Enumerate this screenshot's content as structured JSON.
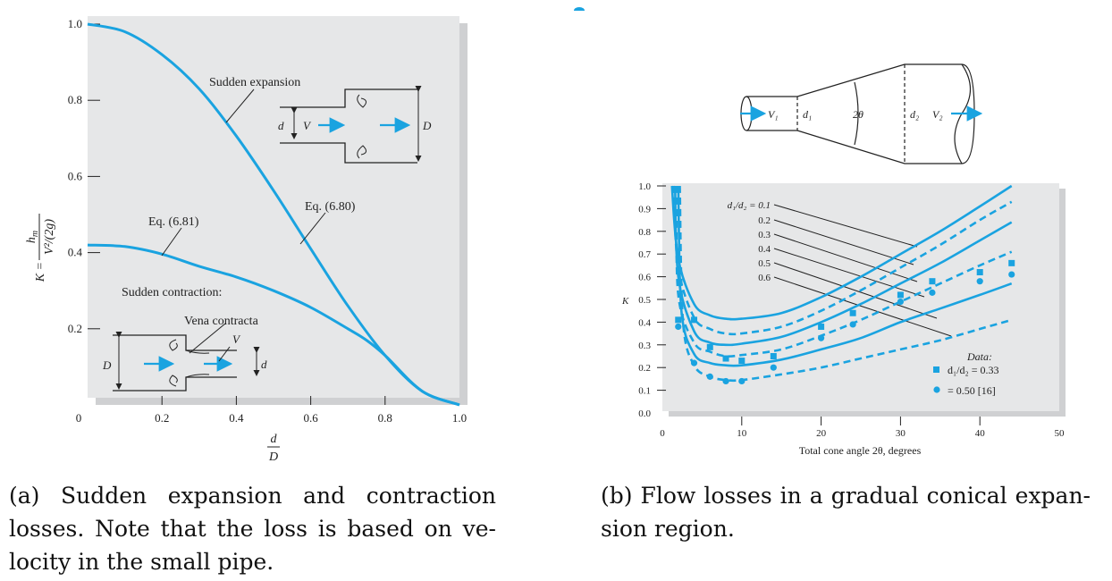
{
  "colors": {
    "curve": "#1aa3e0",
    "panel": "#e6e7e8",
    "shadow": "#cfd0d2",
    "ink": "#222222"
  },
  "chart_data": [
    {
      "type": "line",
      "panel": "(a)",
      "xlabel_num": "d",
      "xlabel_den": "D",
      "ylabel": {
        "lhs": "K =",
        "num": "h",
        "num_sub": "m",
        "den": "V²/(2g)"
      },
      "xlim": [
        0,
        1.0
      ],
      "ylim": [
        0,
        1.0
      ],
      "x_ticks": [
        "0",
        "0.2",
        "0.4",
        "0.6",
        "0.8",
        "1.0"
      ],
      "x_tick_values": [
        0,
        0.2,
        0.4,
        0.6,
        0.8,
        1.0
      ],
      "y_ticks": [
        "0.2",
        "0.4",
        "0.6",
        "0.8",
        "1.0"
      ],
      "y_tick_values": [
        0.2,
        0.4,
        0.6,
        0.8,
        1.0
      ],
      "series": [
        {
          "name": "Sudden expansion",
          "x": [
            0,
            0.1,
            0.2,
            0.3,
            0.4,
            0.5,
            0.6,
            0.7,
            0.8,
            0.9,
            1.0
          ],
          "y": [
            1.0,
            0.98,
            0.92,
            0.83,
            0.706,
            0.563,
            0.41,
            0.26,
            0.13,
            0.036,
            0.0
          ]
        },
        {
          "name": "Sudden contraction:",
          "x": [
            0,
            0.1,
            0.2,
            0.3,
            0.4,
            0.5,
            0.6,
            0.7,
            0.75,
            0.8,
            0.9,
            1.0
          ],
          "y": [
            0.42,
            0.416,
            0.396,
            0.364,
            0.336,
            0.3,
            0.256,
            0.2,
            0.17,
            0.13,
            0.036,
            0.0
          ]
        }
      ],
      "annotations": [
        "Sudden expansion",
        "Eq. (6.80)",
        "Eq. (6.81)",
        "Sudden contraction:",
        "Vena contracta"
      ],
      "inset_expansion": {
        "d": "d",
        "V": "V",
        "D": "D"
      },
      "inset_contraction": {
        "d": "d",
        "V": "V",
        "D": "D"
      }
    },
    {
      "type": "line",
      "panel": "(b)",
      "xlabel": "Total cone angle 2θ, degrees",
      "ylabel": "K",
      "xlim": [
        0,
        50
      ],
      "ylim": [
        0,
        1.0
      ],
      "x_ticks": [
        "0",
        "10",
        "20",
        "30",
        "40",
        "50"
      ],
      "x_tick_values": [
        0,
        10,
        20,
        30,
        40,
        50
      ],
      "y_ticks": [
        "0.0",
        "0.1",
        "0.2",
        "0.3",
        "0.4",
        "0.5",
        "0.6",
        "0.7",
        "0.8",
        "0.9",
        "1.0"
      ],
      "y_tick_values": [
        0,
        0.1,
        0.2,
        0.3,
        0.4,
        0.5,
        0.6,
        0.7,
        0.8,
        0.9,
        1.0
      ],
      "series": [
        {
          "name": "d₁/d₂ = 0.1",
          "style": "solid",
          "x": [
            1.2,
            2,
            4,
            6,
            8,
            10,
            15,
            20,
            25,
            30,
            35,
            40,
            44
          ],
          "y": [
            1.0,
            0.68,
            0.48,
            0.43,
            0.415,
            0.415,
            0.44,
            0.51,
            0.6,
            0.7,
            0.8,
            0.91,
            1.0
          ]
        },
        {
          "name": "0.2",
          "style": "dashed",
          "x": [
            1.4,
            2,
            4,
            6,
            8,
            10,
            15,
            20,
            25,
            30,
            35,
            40,
            44
          ],
          "y": [
            1.0,
            0.64,
            0.42,
            0.37,
            0.35,
            0.35,
            0.38,
            0.45,
            0.54,
            0.64,
            0.74,
            0.85,
            0.93
          ]
        },
        {
          "name": "0.3",
          "style": "solid",
          "x": [
            1.6,
            2,
            4,
            6,
            8,
            10,
            15,
            20,
            25,
            30,
            35,
            40,
            44
          ],
          "y": [
            1.0,
            0.6,
            0.36,
            0.31,
            0.3,
            0.305,
            0.335,
            0.4,
            0.48,
            0.57,
            0.66,
            0.76,
            0.84
          ]
        },
        {
          "name": "0.4",
          "style": "dashed",
          "x": [
            1.8,
            2,
            4,
            6,
            8,
            10,
            15,
            20,
            25,
            30,
            35,
            40,
            44
          ],
          "y": [
            1.0,
            0.52,
            0.31,
            0.27,
            0.25,
            0.255,
            0.28,
            0.34,
            0.41,
            0.49,
            0.57,
            0.65,
            0.71
          ]
        },
        {
          "name": "0.5",
          "style": "solid",
          "x": [
            2.0,
            2.4,
            4,
            6,
            8,
            10,
            15,
            20,
            25,
            30,
            35,
            40,
            44
          ],
          "y": [
            1.0,
            0.45,
            0.26,
            0.22,
            0.21,
            0.21,
            0.235,
            0.28,
            0.33,
            0.4,
            0.46,
            0.52,
            0.57
          ]
        },
        {
          "name": "0.6",
          "style": "dashed",
          "x": [
            2.2,
            2.6,
            4,
            6,
            8,
            10,
            15,
            20,
            25,
            30,
            35,
            40,
            44
          ],
          "y": [
            1.0,
            0.4,
            0.21,
            0.16,
            0.145,
            0.145,
            0.17,
            0.2,
            0.24,
            0.28,
            0.32,
            0.37,
            0.41
          ]
        }
      ],
      "data_points": [
        {
          "name": "d₁/d₂ = 0.33",
          "marker": "square",
          "x": [
            2,
            4,
            6,
            8,
            10,
            14,
            20,
            24,
            30,
            34,
            40,
            44
          ],
          "y": [
            0.41,
            0.41,
            0.29,
            0.24,
            0.23,
            0.25,
            0.38,
            0.44,
            0.52,
            0.58,
            0.62,
            0.66
          ]
        },
        {
          "name": "= 0.50 [16]",
          "marker": "circle",
          "x": [
            2,
            4,
            6,
            8,
            10,
            14,
            20,
            24,
            30,
            34,
            40,
            44
          ],
          "y": [
            0.38,
            0.22,
            0.16,
            0.14,
            0.14,
            0.2,
            0.33,
            0.39,
            0.49,
            0.53,
            0.58,
            0.61
          ]
        }
      ],
      "legend_title": "Data:",
      "legend_placement": "bottom-right",
      "series_labels": [
        "d₁/d₂ = 0.1",
        "0.2",
        "0.3",
        "0.4",
        "0.5",
        "0.6"
      ],
      "schematic": {
        "V1": "V₁",
        "d1": "d₁",
        "angle": "2θ",
        "d2": "d₂",
        "V2": "V₂"
      }
    }
  ],
  "captions": {
    "a_line1": "(a) Sudden expansion and contraction",
    "a_line2": "losses. Note that the loss is based on ve-",
    "a_line3": "locity in the small pipe.",
    "b_line1": "(b) Flow losses in a gradual conical expan-",
    "b_line2": "sion region."
  }
}
